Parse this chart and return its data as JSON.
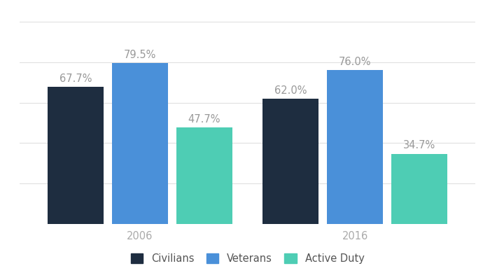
{
  "groups": [
    "2006",
    "2016"
  ],
  "categories": [
    "Civilians",
    "Veterans",
    "Active Duty"
  ],
  "values": {
    "2006": [
      67.7,
      79.5,
      47.7
    ],
    "2016": [
      62.0,
      76.0,
      34.7
    ]
  },
  "bar_colors": [
    "#1e2d40",
    "#4a90d9",
    "#4ecdb4"
  ],
  "label_color": "#999999",
  "label_fontsize": 10.5,
  "tick_color": "#aaaaaa",
  "group_tick_fontsize": 10.5,
  "bar_width": 0.13,
  "group_centers": [
    0.35,
    0.85
  ],
  "ylim": [
    0,
    100
  ],
  "grid_color": "#e0e0e0",
  "background_color": "#ffffff",
  "legend_labels": [
    "Civilians",
    "Veterans",
    "Active Duty"
  ],
  "legend_fontsize": 10.5,
  "yticks": [
    20,
    40,
    60,
    80,
    100
  ]
}
